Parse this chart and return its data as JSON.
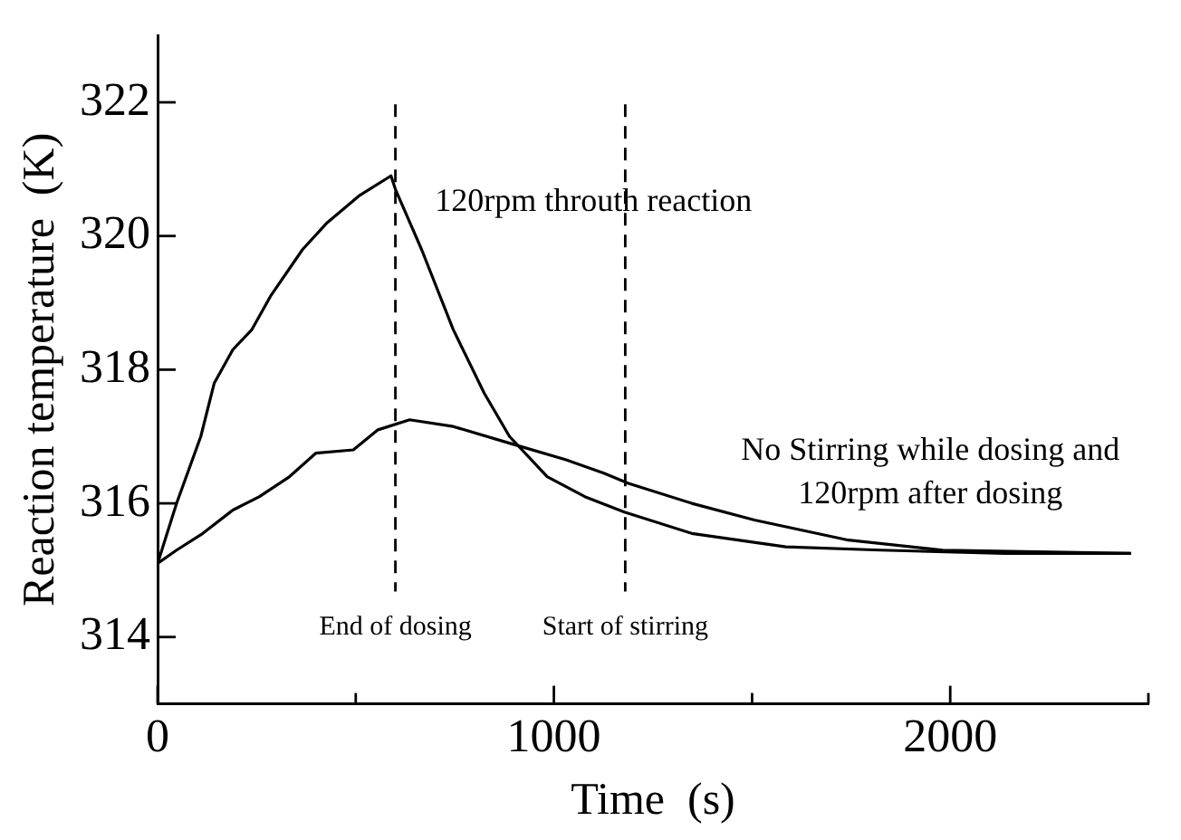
{
  "chart_data": {
    "type": "line",
    "xlabel": "Time  (s)",
    "ylabel": "Reaction temperature  (K)",
    "xlim": [
      0,
      2500
    ],
    "xticks": [
      0,
      {
        "value": 500,
        "label": null
      },
      1000,
      {
        "value": 1500,
        "label": null
      },
      2000,
      {
        "value": 2500,
        "label": null
      }
    ],
    "ylim": [
      313,
      323
    ],
    "yticks": [
      314,
      316,
      318,
      320,
      322
    ],
    "marker": "none",
    "line_style": "solid",
    "legend": false,
    "grid": false,
    "ref_lines": [
      {
        "axis": "x",
        "value": 600,
        "label": "End of dosing",
        "color": "#000000",
        "line_style": "dashed"
      },
      {
        "axis": "x",
        "value": 1180,
        "label": "Start of stirring",
        "color": "#000000",
        "line_style": "dashed"
      }
    ],
    "series": [
      {
        "name": "120rpm throuth reaction",
        "color": "#000000",
        "x": [
          0,
          48,
          109,
          143,
          190,
          238,
          285,
          366,
          428,
          508,
          589,
          600,
          666,
          746,
          824,
          888,
          983,
          1078,
          1178,
          1348,
          1585,
          1824,
          2138,
          2456
        ],
        "values": [
          315.1,
          316.0,
          317.0,
          317.8,
          318.3,
          318.6,
          319.1,
          319.8,
          320.2,
          320.6,
          320.9,
          320.7,
          319.8,
          318.6,
          317.65,
          317.0,
          316.4,
          316.1,
          315.87,
          315.55,
          315.35,
          315.3,
          315.25,
          315.25
        ]
      },
      {
        "name": "No Stirring while dosing and 120rpm after dosing",
        "color": "#000000",
        "x": [
          0,
          48,
          114,
          190,
          257,
          333,
          399,
          494,
          556,
          636,
          746,
          888,
          1031,
          1126,
          1188,
          1348,
          1506,
          1743,
          1981,
          2456
        ],
        "values": [
          315.1,
          315.3,
          315.55,
          315.9,
          316.1,
          316.4,
          316.75,
          316.8,
          317.1,
          317.25,
          317.15,
          316.9,
          316.65,
          316.45,
          316.3,
          316.0,
          315.75,
          315.45,
          315.3,
          315.25
        ]
      }
    ]
  }
}
